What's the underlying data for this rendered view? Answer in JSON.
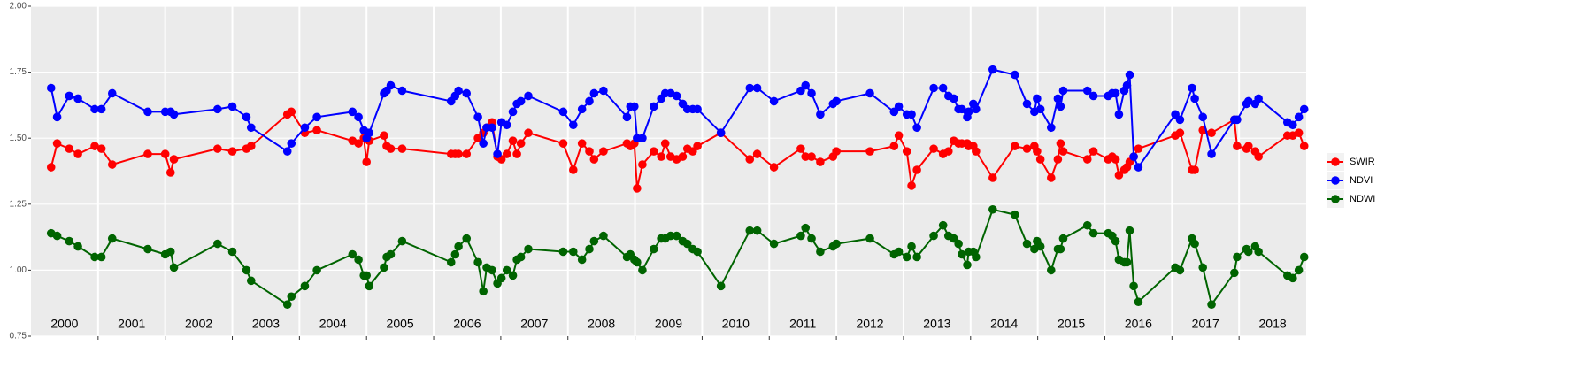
{
  "chart_data": {
    "type": "line",
    "year_labels": [
      "2000",
      "2001",
      "2002",
      "2003",
      "2004",
      "2005",
      "2006",
      "2007",
      "2008",
      "2009",
      "2010",
      "2011",
      "2012",
      "2013",
      "2014",
      "2015",
      "2016",
      "2017",
      "2018"
    ],
    "xlim": [
      2000,
      2019
    ],
    "xticks": [
      2001,
      2002,
      2003,
      2004,
      2005,
      2006,
      2007,
      2008,
      2009,
      2010,
      2011,
      2012,
      2013,
      2014,
      2015,
      2016,
      2017,
      2018
    ],
    "ylim": [
      0.75,
      2.0
    ],
    "yticks": [
      {
        "value": 0.75,
        "label": "0.75"
      },
      {
        "value": 1.0,
        "label": "1.00"
      },
      {
        "value": 1.25,
        "label": "1.25"
      },
      {
        "value": 1.5,
        "label": "1.50"
      },
      {
        "value": 1.75,
        "label": "1.75"
      },
      {
        "value": 2.0,
        "label": "2.00"
      }
    ],
    "grid": true,
    "legend": "right",
    "x": [
      2000.3,
      2000.39,
      2000.57,
      2000.7,
      2000.95,
      2001.05,
      2001.21,
      2001.74,
      2002.0,
      2002.08,
      2002.13,
      2002.78,
      2003.0,
      2003.21,
      2003.28,
      2003.82,
      2003.88,
      2004.08,
      2004.26,
      2004.79,
      2004.88,
      2004.96,
      2005.0,
      2005.04,
      2005.26,
      2005.3,
      2005.36,
      2005.53,
      2006.26,
      2006.32,
      2006.37,
      2006.49,
      2006.66,
      2006.74,
      2006.79,
      2006.87,
      2006.95,
      2007.01,
      2007.09,
      2007.18,
      2007.24,
      2007.3,
      2007.41,
      2007.93,
      2008.08,
      2008.21,
      2008.32,
      2008.39,
      2008.53,
      2008.88,
      2008.93,
      2008.99,
      2009.03,
      2009.11,
      2009.28,
      2009.39,
      2009.45,
      2009.53,
      2009.62,
      2009.71,
      2009.78,
      2009.86,
      2009.93,
      2010.28,
      2010.71,
      2010.82,
      2011.07,
      2011.47,
      2011.54,
      2011.63,
      2011.76,
      2011.95,
      2012.0,
      2012.5,
      2012.86,
      2012.93,
      2013.05,
      2013.12,
      2013.2,
      2013.45,
      2013.59,
      2013.67,
      2013.75,
      2013.82,
      2013.87,
      2013.95,
      2013.97,
      2014.04,
      2014.08,
      2014.33,
      2014.66,
      2014.84,
      2014.95,
      2014.99,
      2015.04,
      2015.2,
      2015.3,
      2015.34,
      2015.38,
      2015.74,
      2015.83,
      2016.05,
      2016.11,
      2016.16,
      2016.21,
      2016.29,
      2016.33,
      2016.37,
      2016.43,
      2016.5,
      2017.05,
      2017.12,
      2017.3,
      2017.34,
      2017.46,
      2017.59,
      2017.93,
      2017.97,
      2018.11,
      2018.14,
      2018.24,
      2018.29,
      2018.72,
      2018.8,
      2018.89,
      2018.97
    ],
    "series": [
      {
        "name": "SWIR",
        "color": "#ff0000",
        "values": [
          1.39,
          1.48,
          1.46,
          1.44,
          1.47,
          1.46,
          1.4,
          1.44,
          1.44,
          1.37,
          1.42,
          1.46,
          1.45,
          1.46,
          1.47,
          1.59,
          1.6,
          1.52,
          1.53,
          1.49,
          1.48,
          1.5,
          1.41,
          1.49,
          1.51,
          1.47,
          1.46,
          1.46,
          1.44,
          1.44,
          1.44,
          1.44,
          1.5,
          1.52,
          1.54,
          1.56,
          1.43,
          1.42,
          1.44,
          1.49,
          1.44,
          1.48,
          1.52,
          1.48,
          1.38,
          1.48,
          1.45,
          1.42,
          1.45,
          1.48,
          1.47,
          1.48,
          1.31,
          1.4,
          1.45,
          1.43,
          1.48,
          1.43,
          1.42,
          1.43,
          1.46,
          1.45,
          1.47,
          1.52,
          1.42,
          1.44,
          1.39,
          1.46,
          1.43,
          1.43,
          1.41,
          1.43,
          1.45,
          1.45,
          1.47,
          1.51,
          1.45,
          1.32,
          1.38,
          1.46,
          1.44,
          1.45,
          1.49,
          1.48,
          1.48,
          1.48,
          1.47,
          1.47,
          1.45,
          1.35,
          1.47,
          1.46,
          1.47,
          1.45,
          1.42,
          1.35,
          1.42,
          1.48,
          1.45,
          1.42,
          1.45,
          1.42,
          1.43,
          1.42,
          1.36,
          1.38,
          1.39,
          1.41,
          1.43,
          1.46,
          1.51,
          1.52,
          1.38,
          1.38,
          1.53,
          1.52,
          1.57,
          1.47,
          1.46,
          1.47,
          1.45,
          1.43,
          1.51,
          1.51,
          1.52,
          1.47
        ]
      },
      {
        "name": "NDVI",
        "color": "#0000ff",
        "values": [
          1.69,
          1.58,
          1.66,
          1.65,
          1.61,
          1.61,
          1.67,
          1.6,
          1.6,
          1.6,
          1.59,
          1.61,
          1.62,
          1.58,
          1.54,
          1.45,
          1.48,
          1.54,
          1.58,
          1.6,
          1.58,
          1.53,
          1.5,
          1.52,
          1.67,
          1.68,
          1.7,
          1.68,
          1.64,
          1.66,
          1.68,
          1.67,
          1.58,
          1.48,
          1.54,
          1.54,
          1.44,
          1.56,
          1.55,
          1.6,
          1.63,
          1.64,
          1.66,
          1.6,
          1.55,
          1.61,
          1.64,
          1.67,
          1.68,
          1.58,
          1.62,
          1.62,
          1.5,
          1.5,
          1.62,
          1.65,
          1.67,
          1.67,
          1.66,
          1.63,
          1.61,
          1.61,
          1.61,
          1.52,
          1.69,
          1.69,
          1.64,
          1.68,
          1.7,
          1.67,
          1.59,
          1.63,
          1.64,
          1.67,
          1.6,
          1.62,
          1.59,
          1.59,
          1.54,
          1.69,
          1.69,
          1.66,
          1.65,
          1.61,
          1.61,
          1.58,
          1.6,
          1.63,
          1.61,
          1.76,
          1.74,
          1.63,
          1.6,
          1.65,
          1.61,
          1.54,
          1.65,
          1.62,
          1.68,
          1.68,
          1.66,
          1.66,
          1.67,
          1.67,
          1.59,
          1.68,
          1.7,
          1.74,
          1.43,
          1.39,
          1.59,
          1.57,
          1.69,
          1.65,
          1.58,
          1.44,
          1.57,
          1.57,
          1.63,
          1.64,
          1.63,
          1.65,
          1.56,
          1.55,
          1.58,
          1.61
        ]
      },
      {
        "name": "NDWI",
        "color": "#006400",
        "values": [
          1.14,
          1.13,
          1.11,
          1.09,
          1.05,
          1.05,
          1.12,
          1.08,
          1.06,
          1.07,
          1.01,
          1.1,
          1.07,
          1.0,
          0.96,
          0.87,
          0.9,
          0.94,
          1.0,
          1.06,
          1.04,
          0.98,
          0.98,
          0.94,
          1.01,
          1.05,
          1.06,
          1.11,
          1.03,
          1.06,
          1.09,
          1.12,
          1.03,
          0.92,
          1.01,
          1.0,
          0.95,
          0.97,
          1.0,
          0.98,
          1.04,
          1.05,
          1.08,
          1.07,
          1.07,
          1.04,
          1.08,
          1.11,
          1.13,
          1.05,
          1.06,
          1.04,
          1.03,
          1.0,
          1.08,
          1.12,
          1.12,
          1.13,
          1.13,
          1.11,
          1.1,
          1.08,
          1.07,
          0.94,
          1.15,
          1.15,
          1.1,
          1.13,
          1.16,
          1.12,
          1.07,
          1.09,
          1.1,
          1.12,
          1.06,
          1.07,
          1.05,
          1.09,
          1.05,
          1.13,
          1.17,
          1.13,
          1.12,
          1.1,
          1.06,
          1.02,
          1.07,
          1.07,
          1.05,
          1.23,
          1.21,
          1.1,
          1.08,
          1.11,
          1.09,
          1.0,
          1.08,
          1.08,
          1.12,
          1.17,
          1.14,
          1.14,
          1.13,
          1.11,
          1.04,
          1.03,
          1.03,
          1.15,
          0.94,
          0.88,
          1.01,
          1.0,
          1.12,
          1.1,
          1.01,
          0.87,
          0.99,
          1.05,
          1.08,
          1.07,
          1.09,
          1.07,
          0.98,
          0.97,
          1.0,
          1.05
        ]
      }
    ]
  }
}
